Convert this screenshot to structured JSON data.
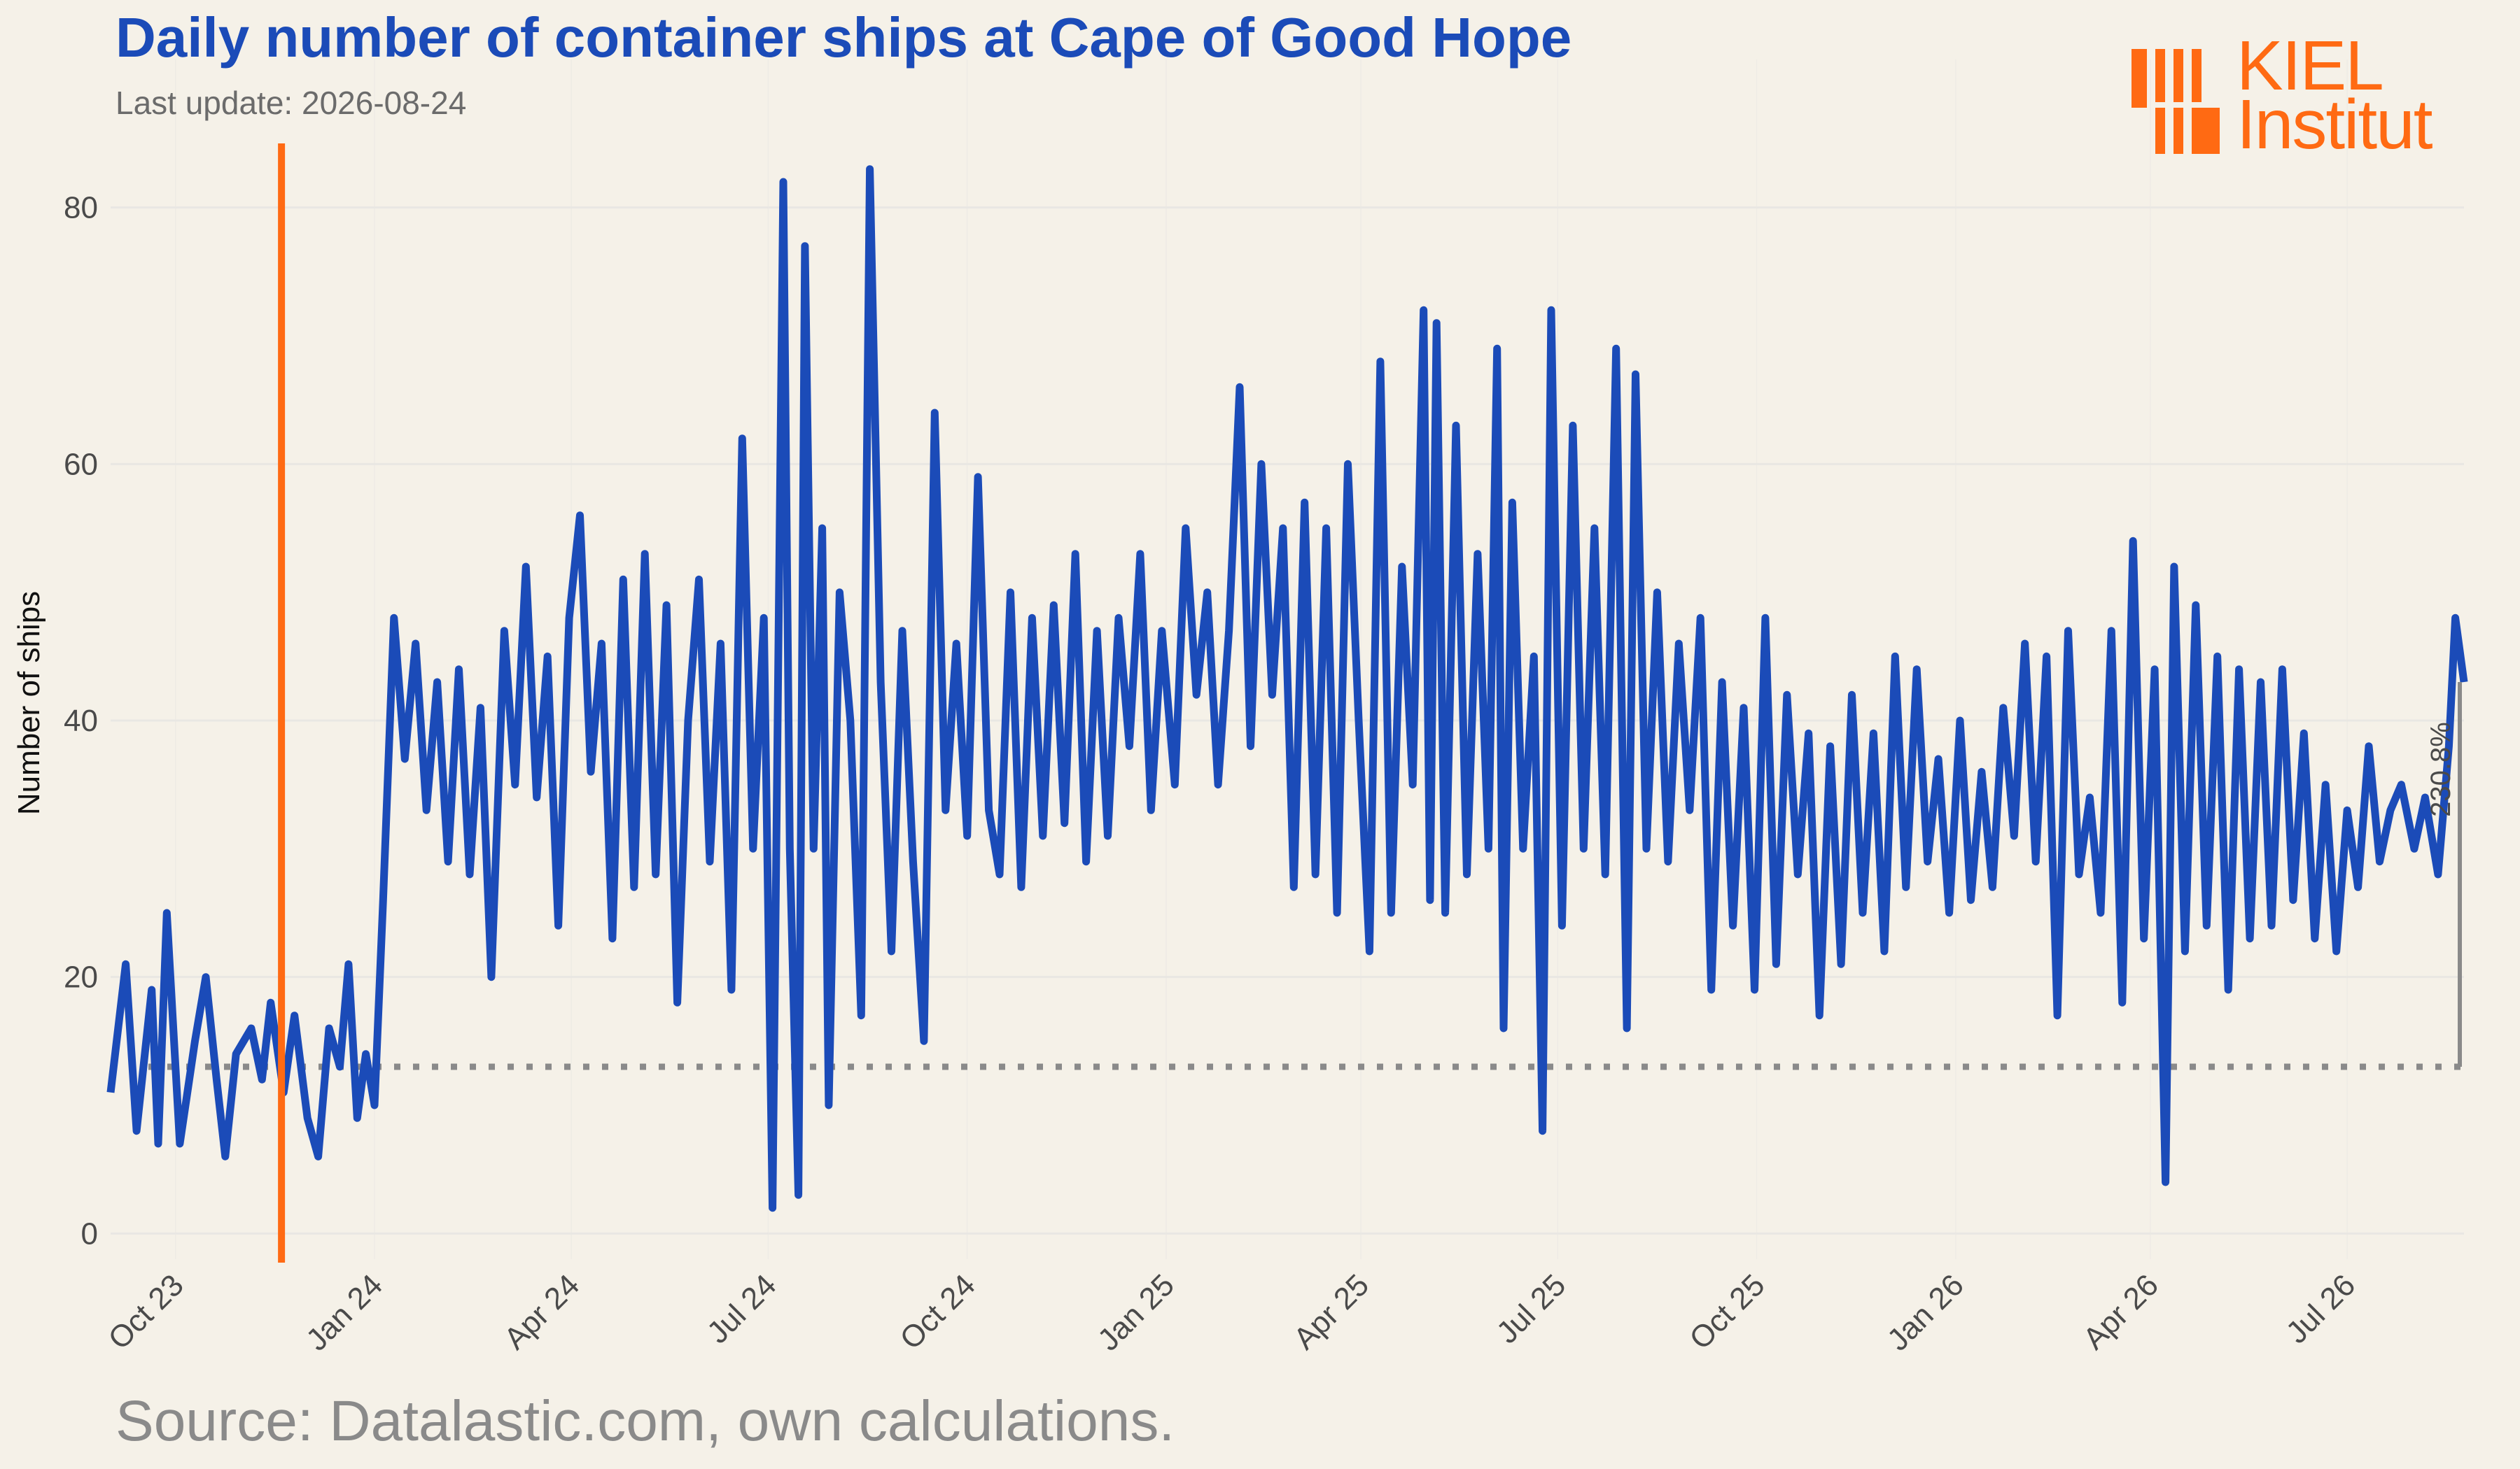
{
  "header": {
    "title": "Daily number of container ships at Cape of Good Hope",
    "subtitle": "Last update: 2026-08-24"
  },
  "footer": {
    "source": "Source: Datalastic.com, own calculations."
  },
  "logo": {
    "line1": "KIEL",
    "line2": "Institut"
  },
  "colors": {
    "series": "#1b4bb8",
    "event_line": "#ff6a13",
    "baseline": "#8a8a8a",
    "background": "#f5f1e8",
    "title": "#1b4bb8",
    "grid": "#e9e7e3"
  },
  "chart_data": {
    "type": "line",
    "title": "Daily number of container ships at Cape of Good Hope",
    "xlabel": "",
    "ylabel": "Number of ships",
    "x_range": [
      "2023-09-01",
      "2026-08-24"
    ],
    "ylim": [
      -2,
      85
    ],
    "y_ticks": [
      0,
      20,
      40,
      60,
      80
    ],
    "x_ticks": [
      {
        "date": "2023-10-01",
        "label": "Oct 23"
      },
      {
        "date": "2024-01-01",
        "label": "Jan 24"
      },
      {
        "date": "2024-04-01",
        "label": "Apr 24"
      },
      {
        "date": "2024-07-01",
        "label": "Jul 24"
      },
      {
        "date": "2024-10-01",
        "label": "Oct 24"
      },
      {
        "date": "2025-01-01",
        "label": "Jan 25"
      },
      {
        "date": "2025-04-01",
        "label": "Apr 25"
      },
      {
        "date": "2025-07-01",
        "label": "Jul 25"
      },
      {
        "date": "2025-10-01",
        "label": "Oct 25"
      },
      {
        "date": "2026-01-01",
        "label": "Jan 26"
      },
      {
        "date": "2026-04-01",
        "label": "Apr 26"
      },
      {
        "date": "2026-07-01",
        "label": "Jul 26"
      }
    ],
    "grid": true,
    "legend": "none",
    "event_line_date": "2023-11-19",
    "baseline_value": 13,
    "annotation": {
      "text": "230.8%",
      "date": "2026-08-24",
      "from": 13,
      "to": 43
    },
    "series": [
      {
        "values": [
          [
            "2023-09-01",
            11
          ],
          [
            "2023-09-08",
            21
          ],
          [
            "2023-09-13",
            8
          ],
          [
            "2023-09-20",
            19
          ],
          [
            "2023-09-23",
            7
          ],
          [
            "2023-09-27",
            25
          ],
          [
            "2023-10-03",
            7
          ],
          [
            "2023-10-10",
            15
          ],
          [
            "2023-10-15",
            20
          ],
          [
            "2023-10-20",
            12
          ],
          [
            "2023-10-24",
            6
          ],
          [
            "2023-10-29",
            14
          ],
          [
            "2023-11-05",
            16
          ],
          [
            "2023-11-10",
            12
          ],
          [
            "2023-11-14",
            18
          ],
          [
            "2023-11-20",
            11
          ],
          [
            "2023-11-25",
            17
          ],
          [
            "2023-12-01",
            9
          ],
          [
            "2023-12-06",
            6
          ],
          [
            "2023-12-11",
            16
          ],
          [
            "2023-12-16",
            13
          ],
          [
            "2023-12-20",
            21
          ],
          [
            "2023-12-24",
            9
          ],
          [
            "2023-12-28",
            14
          ],
          [
            "2024-01-01",
            10
          ],
          [
            "2024-01-05",
            26
          ],
          [
            "2024-01-10",
            48
          ],
          [
            "2024-01-15",
            37
          ],
          [
            "2024-01-20",
            46
          ],
          [
            "2024-01-25",
            33
          ],
          [
            "2024-01-30",
            43
          ],
          [
            "2024-02-04",
            29
          ],
          [
            "2024-02-09",
            44
          ],
          [
            "2024-02-14",
            28
          ],
          [
            "2024-02-19",
            41
          ],
          [
            "2024-02-24",
            20
          ],
          [
            "2024-03-01",
            47
          ],
          [
            "2024-03-06",
            35
          ],
          [
            "2024-03-11",
            52
          ],
          [
            "2024-03-16",
            34
          ],
          [
            "2024-03-21",
            45
          ],
          [
            "2024-03-26",
            24
          ],
          [
            "2024-03-31",
            48
          ],
          [
            "2024-04-05",
            56
          ],
          [
            "2024-04-10",
            36
          ],
          [
            "2024-04-15",
            46
          ],
          [
            "2024-04-20",
            23
          ],
          [
            "2024-04-25",
            51
          ],
          [
            "2024-04-30",
            27
          ],
          [
            "2024-05-05",
            53
          ],
          [
            "2024-05-10",
            28
          ],
          [
            "2024-05-15",
            49
          ],
          [
            "2024-05-20",
            18
          ],
          [
            "2024-05-25",
            40
          ],
          [
            "2024-05-30",
            51
          ],
          [
            "2024-06-04",
            29
          ],
          [
            "2024-06-09",
            46
          ],
          [
            "2024-06-14",
            19
          ],
          [
            "2024-06-19",
            62
          ],
          [
            "2024-06-24",
            30
          ],
          [
            "2024-06-29",
            48
          ],
          [
            "2024-07-03",
            2
          ],
          [
            "2024-07-08",
            82
          ],
          [
            "2024-07-11",
            30
          ],
          [
            "2024-07-15",
            3
          ],
          [
            "2024-07-18",
            77
          ],
          [
            "2024-07-22",
            30
          ],
          [
            "2024-07-26",
            55
          ],
          [
            "2024-07-29",
            10
          ],
          [
            "2024-08-03",
            50
          ],
          [
            "2024-08-08",
            40
          ],
          [
            "2024-08-13",
            17
          ],
          [
            "2024-08-17",
            83
          ],
          [
            "2024-08-22",
            43
          ],
          [
            "2024-08-27",
            22
          ],
          [
            "2024-09-01",
            47
          ],
          [
            "2024-09-06",
            29
          ],
          [
            "2024-09-11",
            15
          ],
          [
            "2024-09-16",
            64
          ],
          [
            "2024-09-21",
            33
          ],
          [
            "2024-09-26",
            46
          ],
          [
            "2024-10-01",
            31
          ],
          [
            "2024-10-06",
            59
          ],
          [
            "2024-10-11",
            33
          ],
          [
            "2024-10-16",
            28
          ],
          [
            "2024-10-21",
            50
          ],
          [
            "2024-10-26",
            27
          ],
          [
            "2024-10-31",
            48
          ],
          [
            "2024-11-05",
            31
          ],
          [
            "2024-11-10",
            49
          ],
          [
            "2024-11-15",
            32
          ],
          [
            "2024-11-20",
            53
          ],
          [
            "2024-11-25",
            29
          ],
          [
            "2024-11-30",
            47
          ],
          [
            "2024-12-05",
            31
          ],
          [
            "2024-12-10",
            48
          ],
          [
            "2024-12-15",
            38
          ],
          [
            "2024-12-20",
            53
          ],
          [
            "2024-12-25",
            33
          ],
          [
            "2024-12-30",
            47
          ],
          [
            "2025-01-05",
            35
          ],
          [
            "2025-01-10",
            55
          ],
          [
            "2025-01-15",
            42
          ],
          [
            "2025-01-20",
            50
          ],
          [
            "2025-01-25",
            35
          ],
          [
            "2025-01-30",
            47
          ],
          [
            "2025-02-04",
            66
          ],
          [
            "2025-02-09",
            38
          ],
          [
            "2025-02-14",
            60
          ],
          [
            "2025-02-19",
            42
          ],
          [
            "2025-02-24",
            55
          ],
          [
            "2025-03-01",
            27
          ],
          [
            "2025-03-06",
            57
          ],
          [
            "2025-03-11",
            28
          ],
          [
            "2025-03-16",
            55
          ],
          [
            "2025-03-21",
            25
          ],
          [
            "2025-03-26",
            60
          ],
          [
            "2025-03-31",
            40
          ],
          [
            "2025-04-05",
            22
          ],
          [
            "2025-04-10",
            68
          ],
          [
            "2025-04-15",
            25
          ],
          [
            "2025-04-20",
            52
          ],
          [
            "2025-04-25",
            35
          ],
          [
            "2025-04-30",
            72
          ],
          [
            "2025-05-03",
            26
          ],
          [
            "2025-05-06",
            71
          ],
          [
            "2025-05-10",
            25
          ],
          [
            "2025-05-15",
            63
          ],
          [
            "2025-05-20",
            28
          ],
          [
            "2025-05-25",
            53
          ],
          [
            "2025-05-30",
            30
          ],
          [
            "2025-06-03",
            69
          ],
          [
            "2025-06-06",
            16
          ],
          [
            "2025-06-10",
            57
          ],
          [
            "2025-06-15",
            30
          ],
          [
            "2025-06-20",
            45
          ],
          [
            "2025-06-24",
            8
          ],
          [
            "2025-06-28",
            72
          ],
          [
            "2025-07-03",
            24
          ],
          [
            "2025-07-08",
            63
          ],
          [
            "2025-07-13",
            30
          ],
          [
            "2025-07-18",
            55
          ],
          [
            "2025-07-23",
            28
          ],
          [
            "2025-07-28",
            69
          ],
          [
            "2025-08-02",
            16
          ],
          [
            "2025-08-06",
            67
          ],
          [
            "2025-08-11",
            30
          ],
          [
            "2025-08-16",
            50
          ],
          [
            "2025-08-21",
            29
          ],
          [
            "2025-08-26",
            46
          ],
          [
            "2025-08-31",
            33
          ],
          [
            "2025-09-05",
            48
          ],
          [
            "2025-09-10",
            19
          ],
          [
            "2025-09-15",
            43
          ],
          [
            "2025-09-20",
            24
          ],
          [
            "2025-09-25",
            41
          ],
          [
            "2025-09-30",
            19
          ],
          [
            "2025-10-05",
            48
          ],
          [
            "2025-10-10",
            21
          ],
          [
            "2025-10-15",
            42
          ],
          [
            "2025-10-20",
            28
          ],
          [
            "2025-10-25",
            39
          ],
          [
            "2025-10-30",
            17
          ],
          [
            "2025-11-04",
            38
          ],
          [
            "2025-11-09",
            21
          ],
          [
            "2025-11-14",
            42
          ],
          [
            "2025-11-19",
            25
          ],
          [
            "2025-11-24",
            39
          ],
          [
            "2025-11-29",
            22
          ],
          [
            "2025-12-04",
            45
          ],
          [
            "2025-12-09",
            27
          ],
          [
            "2025-12-14",
            44
          ],
          [
            "2025-12-19",
            29
          ],
          [
            "2025-12-24",
            37
          ],
          [
            "2025-12-29",
            25
          ],
          [
            "2026-01-03",
            40
          ],
          [
            "2026-01-08",
            26
          ],
          [
            "2026-01-13",
            36
          ],
          [
            "2026-01-18",
            27
          ],
          [
            "2026-01-23",
            41
          ],
          [
            "2026-01-28",
            31
          ],
          [
            "2026-02-02",
            46
          ],
          [
            "2026-02-07",
            29
          ],
          [
            "2026-02-12",
            45
          ],
          [
            "2026-02-17",
            17
          ],
          [
            "2026-02-22",
            47
          ],
          [
            "2026-02-27",
            28
          ],
          [
            "2026-03-04",
            34
          ],
          [
            "2026-03-09",
            25
          ],
          [
            "2026-03-14",
            47
          ],
          [
            "2026-03-19",
            18
          ],
          [
            "2026-03-24",
            54
          ],
          [
            "2026-03-29",
            23
          ],
          [
            "2026-04-03",
            44
          ],
          [
            "2026-04-08",
            4
          ],
          [
            "2026-04-12",
            52
          ],
          [
            "2026-04-17",
            22
          ],
          [
            "2026-04-22",
            49
          ],
          [
            "2026-04-27",
            24
          ],
          [
            "2026-05-02",
            45
          ],
          [
            "2026-05-07",
            19
          ],
          [
            "2026-05-12",
            44
          ],
          [
            "2026-05-17",
            23
          ],
          [
            "2026-05-22",
            43
          ],
          [
            "2026-05-27",
            24
          ],
          [
            "2026-06-01",
            44
          ],
          [
            "2026-06-06",
            26
          ],
          [
            "2026-06-11",
            39
          ],
          [
            "2026-06-16",
            23
          ],
          [
            "2026-06-21",
            35
          ],
          [
            "2026-06-26",
            22
          ],
          [
            "2026-07-01",
            33
          ],
          [
            "2026-07-06",
            27
          ],
          [
            "2026-07-11",
            38
          ],
          [
            "2026-07-16",
            29
          ],
          [
            "2026-07-21",
            33
          ],
          [
            "2026-07-26",
            35
          ],
          [
            "2026-08-01",
            30
          ],
          [
            "2026-08-06",
            34
          ],
          [
            "2026-08-12",
            28
          ],
          [
            "2026-08-17",
            38
          ],
          [
            "2026-08-20",
            48
          ],
          [
            "2026-08-24",
            43
          ]
        ]
      }
    ]
  }
}
